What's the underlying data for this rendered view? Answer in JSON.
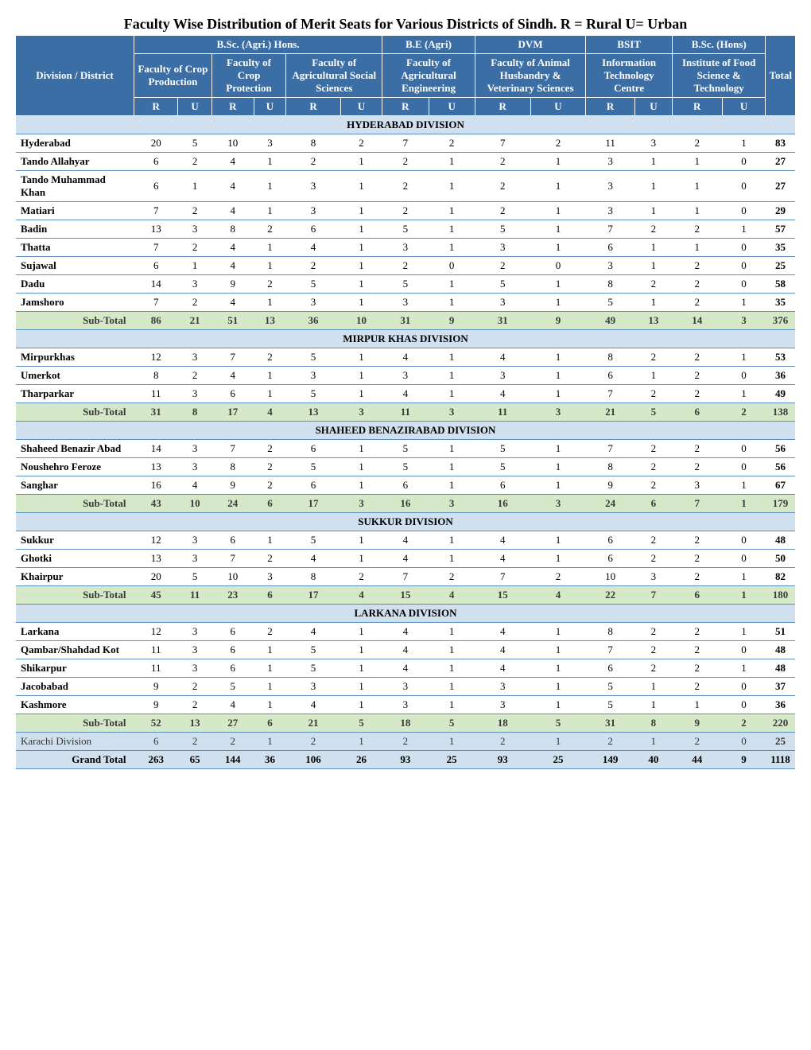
{
  "title": "Faculty Wise Distribution of Merit Seats for Various Districts of Sindh. R = Rural U= Urban",
  "colors": {
    "header_bg": "#3b6ea5",
    "header_fg": "#ffffff",
    "band_bg": "#d0e0ee",
    "subtotal_bg": "#d5e8c8",
    "row_border": "#5a8fbf"
  },
  "header": {
    "district": "Division / District",
    "total": "Total",
    "groups": [
      {
        "label": "B.Sc. (Agri.) Hons.",
        "span": 6
      },
      {
        "label": "B.E (Agri)",
        "span": 2
      },
      {
        "label": "DVM",
        "span": 2
      },
      {
        "label": "BSIT",
        "span": 2
      },
      {
        "label": "B.Sc. (Hons)",
        "span": 2
      }
    ],
    "faculties": [
      {
        "label": "Faculty of Crop Production",
        "span": 2
      },
      {
        "label": "Faculty of Crop Protection",
        "span": 2
      },
      {
        "label": "Faculty of Agricultural Social Sciences",
        "span": 2
      },
      {
        "label": "Faculty of Agricultural Engineering",
        "span": 2
      },
      {
        "label": "Faculty of Animal Husbandry & Veterinary Sciences",
        "span": 2
      },
      {
        "label": "Information Technology Centre",
        "span": 2
      },
      {
        "label": "Institute of Food Science & Technology",
        "span": 2
      }
    ],
    "ru": {
      "R": "R",
      "U": "U"
    }
  },
  "divisions": [
    {
      "name": "HYDERABAD DIVISION",
      "rows": [
        {
          "district": "Hyderabad",
          "v": [
            20,
            5,
            10,
            3,
            8,
            2,
            7,
            2,
            7,
            2,
            11,
            3,
            2,
            1
          ],
          "total": 83
        },
        {
          "district": "Tando Allahyar",
          "v": [
            6,
            2,
            4,
            1,
            2,
            1,
            2,
            1,
            2,
            1,
            3,
            1,
            1,
            0
          ],
          "total": 27
        },
        {
          "district": "Tando Muhammad Khan",
          "v": [
            6,
            1,
            4,
            1,
            3,
            1,
            2,
            1,
            2,
            1,
            3,
            1,
            1,
            0
          ],
          "total": 27
        },
        {
          "district": "Matiari",
          "v": [
            7,
            2,
            4,
            1,
            3,
            1,
            2,
            1,
            2,
            1,
            3,
            1,
            1,
            0
          ],
          "total": 29
        },
        {
          "district": "Badin",
          "v": [
            13,
            3,
            8,
            2,
            6,
            1,
            5,
            1,
            5,
            1,
            7,
            2,
            2,
            1
          ],
          "total": 57
        },
        {
          "district": "Thatta",
          "v": [
            7,
            2,
            4,
            1,
            4,
            1,
            3,
            1,
            3,
            1,
            6,
            1,
            1,
            0
          ],
          "total": 35
        },
        {
          "district": "Sujawal",
          "v": [
            6,
            1,
            4,
            1,
            2,
            1,
            2,
            0,
            2,
            0,
            3,
            1,
            2,
            0
          ],
          "total": 25
        },
        {
          "district": "Dadu",
          "v": [
            14,
            3,
            9,
            2,
            5,
            1,
            5,
            1,
            5,
            1,
            8,
            2,
            2,
            0
          ],
          "total": 58
        },
        {
          "district": "Jamshoro",
          "v": [
            7,
            2,
            4,
            1,
            3,
            1,
            3,
            1,
            3,
            1,
            5,
            1,
            2,
            1
          ],
          "total": 35
        }
      ],
      "subtotal": {
        "label": "Sub-Total",
        "v": [
          86,
          21,
          51,
          13,
          36,
          10,
          31,
          9,
          31,
          9,
          49,
          13,
          14,
          3
        ],
        "total": 376
      }
    },
    {
      "name": "MIRPUR KHAS DIVISION",
      "rows": [
        {
          "district": "Mirpurkhas",
          "v": [
            12,
            3,
            7,
            2,
            5,
            1,
            4,
            1,
            4,
            1,
            8,
            2,
            2,
            1
          ],
          "total": 53
        },
        {
          "district": "Umerkot",
          "v": [
            8,
            2,
            4,
            1,
            3,
            1,
            3,
            1,
            3,
            1,
            6,
            1,
            2,
            0
          ],
          "total": 36
        },
        {
          "district": "Tharparkar",
          "v": [
            11,
            3,
            6,
            1,
            5,
            1,
            4,
            1,
            4,
            1,
            7,
            2,
            2,
            1
          ],
          "total": 49
        }
      ],
      "subtotal": {
        "label": "Sub-Total",
        "v": [
          31,
          8,
          17,
          4,
          13,
          3,
          11,
          3,
          11,
          3,
          21,
          5,
          6,
          2
        ],
        "total": 138
      }
    },
    {
      "name": "SHAHEED BENAZIRABAD DIVISION",
      "rows": [
        {
          "district": "Shaheed Benazir Abad",
          "v": [
            14,
            3,
            7,
            2,
            6,
            1,
            5,
            1,
            5,
            1,
            7,
            2,
            2,
            0
          ],
          "total": 56
        },
        {
          "district": "Noushehro Feroze",
          "v": [
            13,
            3,
            8,
            2,
            5,
            1,
            5,
            1,
            5,
            1,
            8,
            2,
            2,
            0
          ],
          "total": 56
        },
        {
          "district": "Sanghar",
          "v": [
            16,
            4,
            9,
            2,
            6,
            1,
            6,
            1,
            6,
            1,
            9,
            2,
            3,
            1
          ],
          "total": 67
        }
      ],
      "subtotal": {
        "label": "Sub-Total",
        "v": [
          43,
          10,
          24,
          6,
          17,
          3,
          16,
          3,
          16,
          3,
          24,
          6,
          7,
          1
        ],
        "total": 179
      }
    },
    {
      "name": "SUKKUR DIVISION",
      "rows": [
        {
          "district": "Sukkur",
          "v": [
            12,
            3,
            6,
            1,
            5,
            1,
            4,
            1,
            4,
            1,
            6,
            2,
            2,
            0
          ],
          "total": 48
        },
        {
          "district": "Ghotki",
          "v": [
            13,
            3,
            7,
            2,
            4,
            1,
            4,
            1,
            4,
            1,
            6,
            2,
            2,
            0
          ],
          "total": 50
        },
        {
          "district": "Khairpur",
          "v": [
            20,
            5,
            10,
            3,
            8,
            2,
            7,
            2,
            7,
            2,
            10,
            3,
            2,
            1
          ],
          "total": 82
        }
      ],
      "subtotal": {
        "label": "Sub-Total",
        "v": [
          45,
          11,
          23,
          6,
          17,
          4,
          15,
          4,
          15,
          4,
          22,
          7,
          6,
          1
        ],
        "total": 180
      }
    },
    {
      "name": "LARKANA DIVISION",
      "rows": [
        {
          "district": "Larkana",
          "v": [
            12,
            3,
            6,
            2,
            4,
            1,
            4,
            1,
            4,
            1,
            8,
            2,
            2,
            1
          ],
          "total": 51
        },
        {
          "district": "Qambar/Shahdad Kot",
          "v": [
            11,
            3,
            6,
            1,
            5,
            1,
            4,
            1,
            4,
            1,
            7,
            2,
            2,
            0
          ],
          "total": 48
        },
        {
          "district": "Shikarpur",
          "v": [
            11,
            3,
            6,
            1,
            5,
            1,
            4,
            1,
            4,
            1,
            6,
            2,
            2,
            1
          ],
          "total": 48
        },
        {
          "district": "Jacobabad",
          "v": [
            9,
            2,
            5,
            1,
            3,
            1,
            3,
            1,
            3,
            1,
            5,
            1,
            2,
            0
          ],
          "total": 37
        },
        {
          "district": "Kashmore",
          "v": [
            9,
            2,
            4,
            1,
            4,
            1,
            3,
            1,
            3,
            1,
            5,
            1,
            1,
            0
          ],
          "total": 36
        }
      ],
      "subtotal": {
        "label": "Sub-Total",
        "v": [
          52,
          13,
          27,
          6,
          21,
          5,
          18,
          5,
          18,
          5,
          31,
          8,
          9,
          2
        ],
        "total": 220
      }
    }
  ],
  "karachi": {
    "district": "Karachi Division",
    "v": [
      6,
      2,
      2,
      1,
      2,
      1,
      2,
      1,
      2,
      1,
      2,
      1,
      2,
      0
    ],
    "total": 25
  },
  "grand": {
    "label": "Grand Total",
    "v": [
      263,
      65,
      144,
      36,
      106,
      26,
      93,
      25,
      93,
      25,
      149,
      40,
      44,
      9
    ],
    "total": 1118
  }
}
